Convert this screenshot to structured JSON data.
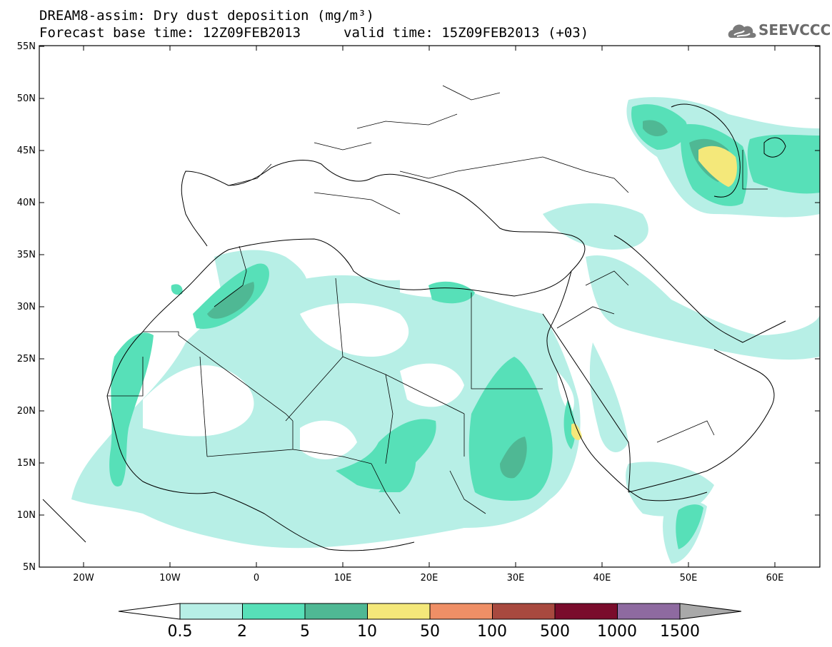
{
  "header": {
    "title_line1": "DREAM8-assim: Dry dust deposition (mg/m³)",
    "title_line2a": "Forecast base time: 12Z09FEB2013",
    "title_line2b": "valid time: 15Z09FEB2013 (+03)",
    "logo_text": "SEEVCCC"
  },
  "map": {
    "lat_ticks": [
      "55N",
      "50N",
      "45N",
      "40N",
      "35N",
      "30N",
      "25N",
      "20N",
      "15N",
      "10N",
      "5N"
    ],
    "lon_ticks": [
      "20W",
      "10W",
      "0",
      "10E",
      "20E",
      "30E",
      "40E",
      "50E",
      "60E"
    ],
    "region": "North Africa, Middle East and Europe"
  },
  "legend": {
    "labels": [
      "0.5",
      "2",
      "5",
      "10",
      "50",
      "100",
      "500",
      "1000",
      "1500"
    ],
    "colors": [
      "#b7efe6",
      "#57e0b8",
      "#4fb894",
      "#f4e87a",
      "#ef8f66",
      "#a8493f",
      "#7a0c2c",
      "#8e6aa0",
      "#a9a9a9"
    ]
  }
}
